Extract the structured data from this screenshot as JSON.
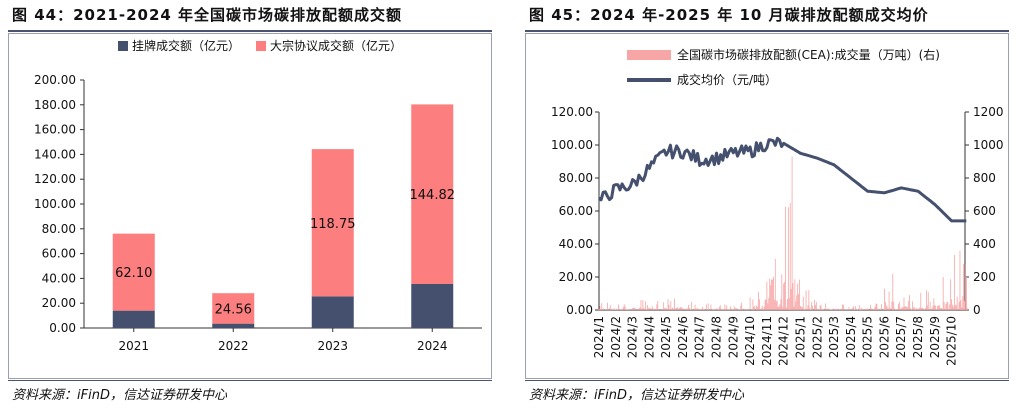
{
  "left": {
    "title": "图 44：2021-2024 年全国碳市场碳排放配额成交额",
    "source": "资料来源：iFinD，信达证券研发中心",
    "chart_data": {
      "type": "bar",
      "stacked": true,
      "categories": [
        "2021",
        "2022",
        "2023",
        "2024"
      ],
      "series": [
        {
          "name": "挂牌成交额（亿元）",
          "color": "#44506e",
          "values": [
            14.0,
            3.5,
            25.5,
            35.5
          ]
        },
        {
          "name": "大宗协议成交额（亿元）",
          "color": "#fc7e7e",
          "values": [
            62.1,
            24.56,
            118.75,
            144.82
          ]
        }
      ],
      "data_labels": [
        "62.10",
        "24.56",
        "118.75",
        "144.82"
      ],
      "ylim": [
        0,
        200
      ],
      "yticks": [
        "0.00",
        "20.00",
        "40.00",
        "60.00",
        "80.00",
        "100.00",
        "120.00",
        "140.00",
        "160.00",
        "180.00",
        "200.00"
      ],
      "legend_position": "top-center",
      "grid": false
    }
  },
  "right": {
    "title": "图 45：2024 年-2025 年 10 月碳排放配额成交均价",
    "source": "资料来源：iFinD，信达证券研发中心",
    "chart_data": {
      "type": "line",
      "x_categories": [
        "2024/1",
        "2024/2",
        "2024/3",
        "2024/4",
        "2024/5",
        "2024/6",
        "2024/7",
        "2024/8",
        "2024/9",
        "2024/10",
        "2024/11",
        "2024/12",
        "2025/1",
        "2025/2",
        "2025/3",
        "2025/4",
        "2025/5",
        "2025/6",
        "2025/7",
        "2025/8",
        "2025/9",
        "2025/10"
      ],
      "series": [
        {
          "name": "全国碳市场碳排放配额(CEA):成交量（万吨）(右)",
          "type": "bar",
          "axis": "right",
          "color": "#f7a5a5",
          "monthly_peak": [
            45,
            35,
            60,
            55,
            70,
            50,
            40,
            35,
            45,
            110,
            310,
            930,
            120,
            40,
            35,
            30,
            40,
            220,
            90,
            120,
            200,
            360
          ]
        },
        {
          "name": "成交均价（元/吨）",
          "type": "line",
          "axis": "left",
          "color": "#44506e",
          "monthly_avg": [
            66,
            73,
            76,
            86,
            96,
            96,
            91,
            92,
            95,
            96,
            101,
            101,
            95,
            92,
            88,
            80,
            72,
            71,
            74,
            72,
            64,
            54
          ]
        }
      ],
      "left_ylim": [
        0,
        120
      ],
      "left_yticks": [
        "0.00",
        "20.00",
        "40.00",
        "60.00",
        "80.00",
        "100.00",
        "120.00"
      ],
      "right_ylim": [
        0,
        1200
      ],
      "right_yticks": [
        "0",
        "200",
        "400",
        "600",
        "800",
        "1000",
        "1200"
      ],
      "legend_position": "top-left",
      "grid": false
    }
  }
}
